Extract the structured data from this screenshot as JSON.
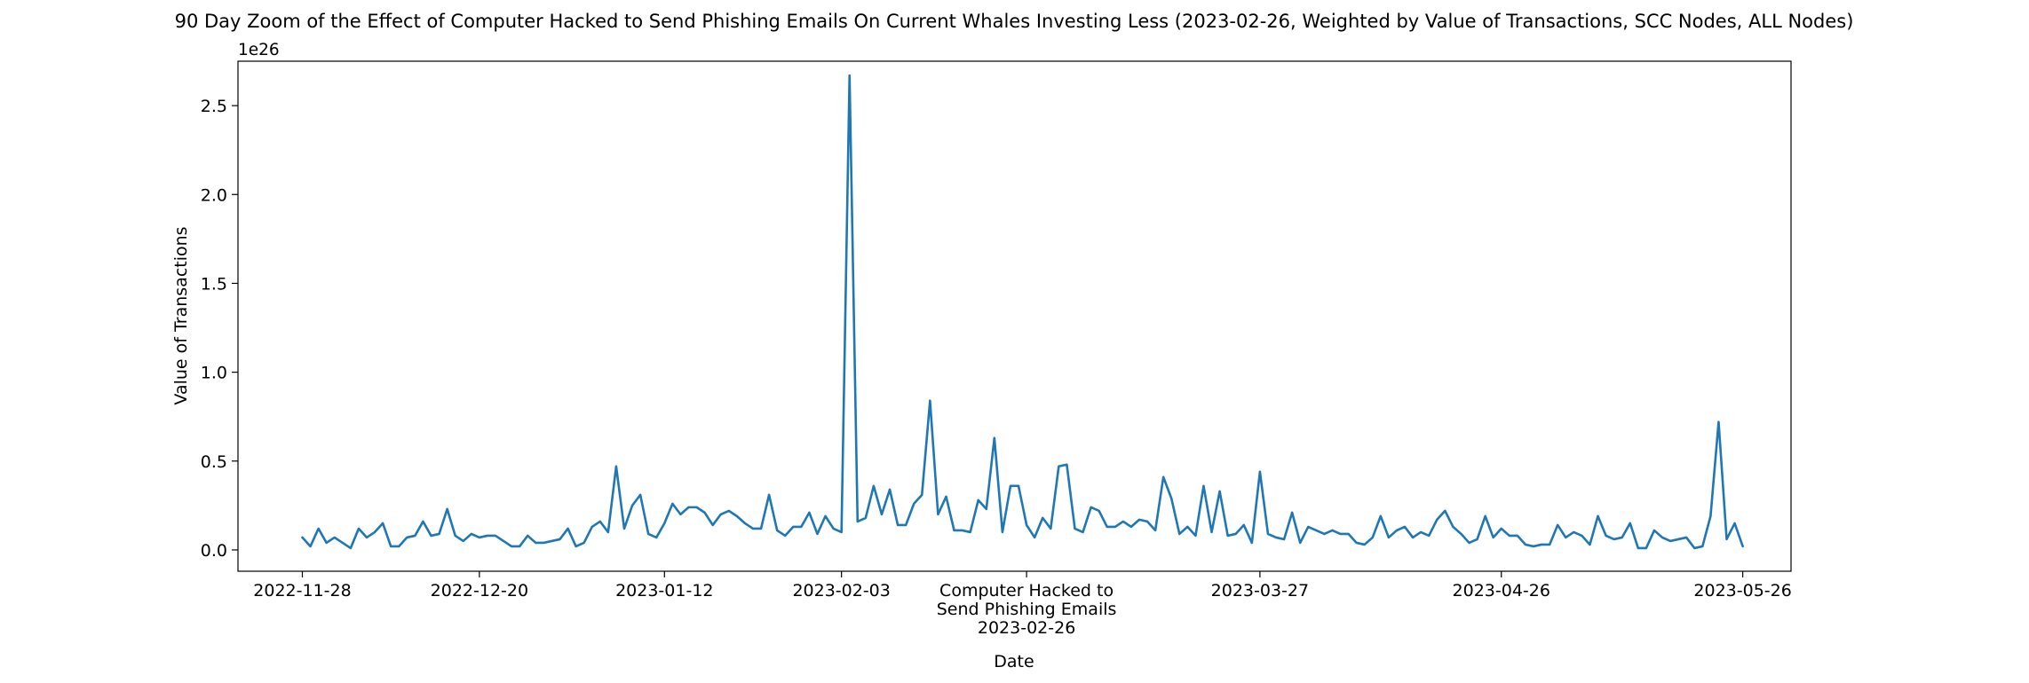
{
  "chart_data": {
    "type": "line",
    "title": "90 Day Zoom of the Effect of Computer Hacked to Send Phishing Emails On Current Whales Investing Less (2023-02-26, Weighted by Value of Transactions, SCC Nodes, ALL Nodes)",
    "xlabel": "Date",
    "ylabel": "Value of Transactions",
    "y_exponent_label": "1e26",
    "ylim": [
      -0.12,
      2.75
    ],
    "xlim": [
      "2022-11-20",
      "2023-06-01"
    ],
    "yticks": [
      0.0,
      0.5,
      1.0,
      1.5,
      2.0,
      2.5
    ],
    "ytick_labels": [
      "0.0",
      "0.5",
      "1.0",
      "1.5",
      "2.0",
      "2.5"
    ],
    "xticks": [
      "2022-11-28",
      "2022-12-20",
      "2023-01-12",
      "2023-02-03",
      "2023-03-27",
      "2023-04-26",
      "2023-05-26"
    ],
    "event": {
      "date": "2023-02-26",
      "label_lines": [
        "Computer Hacked to",
        "Send Phishing Emails",
        "2023-02-26"
      ]
    },
    "grid": false,
    "legend": "none",
    "line_color": "#1f77b4",
    "series": [
      {
        "start_date": "2022-11-28",
        "values": [
          0.07,
          0.02,
          0.12,
          0.04,
          0.07,
          0.04,
          0.01,
          0.12,
          0.07,
          0.1,
          0.15,
          0.02,
          0.02,
          0.07,
          0.08,
          0.16,
          0.08,
          0.09,
          0.23,
          0.08,
          0.05,
          0.09,
          0.07,
          0.08,
          0.08,
          0.05,
          0.02,
          0.02,
          0.08,
          0.04,
          0.04,
          0.05,
          0.06,
          0.12,
          0.02,
          0.04,
          0.13,
          0.16,
          0.1,
          0.47,
          0.12,
          0.25,
          0.31,
          0.09,
          0.07,
          0.15,
          0.26,
          0.2,
          0.24,
          0.24,
          0.21,
          0.14,
          0.2,
          0.22,
          0.19,
          0.15,
          0.12,
          0.12,
          0.31,
          0.11,
          0.08,
          0.13,
          0.13,
          0.21,
          0.09,
          0.19,
          0.12,
          0.1,
          2.67,
          0.16,
          0.18,
          0.36,
          0.2,
          0.34,
          0.14,
          0.14,
          0.26,
          0.31,
          0.84,
          0.2,
          0.3,
          0.11,
          0.11,
          0.1,
          0.28,
          0.23,
          0.63,
          0.1,
          0.36,
          0.36,
          0.14,
          0.07,
          0.18,
          0.12,
          0.47,
          0.48,
          0.12,
          0.1,
          0.24,
          0.22,
          0.13,
          0.13,
          0.16,
          0.13,
          0.17,
          0.16,
          0.11,
          0.41,
          0.29,
          0.09,
          0.13,
          0.08,
          0.36,
          0.1,
          0.33,
          0.08,
          0.09,
          0.14,
          0.04,
          0.44,
          0.09,
          0.07,
          0.06,
          0.21,
          0.04,
          0.13,
          0.11,
          0.09,
          0.11,
          0.09,
          0.09,
          0.04,
          0.03,
          0.07,
          0.19,
          0.07,
          0.11,
          0.13,
          0.07,
          0.1,
          0.08,
          0.17,
          0.22,
          0.13,
          0.09,
          0.04,
          0.06,
          0.19,
          0.07,
          0.12,
          0.08,
          0.08,
          0.03,
          0.02,
          0.03,
          0.03,
          0.14,
          0.07,
          0.1,
          0.08,
          0.03,
          0.19,
          0.08,
          0.06,
          0.07,
          0.15,
          0.01,
          0.01,
          0.11,
          0.07,
          0.05,
          0.06,
          0.07,
          0.01,
          0.02,
          0.19,
          0.72,
          0.06,
          0.15,
          0.02
        ]
      }
    ]
  }
}
